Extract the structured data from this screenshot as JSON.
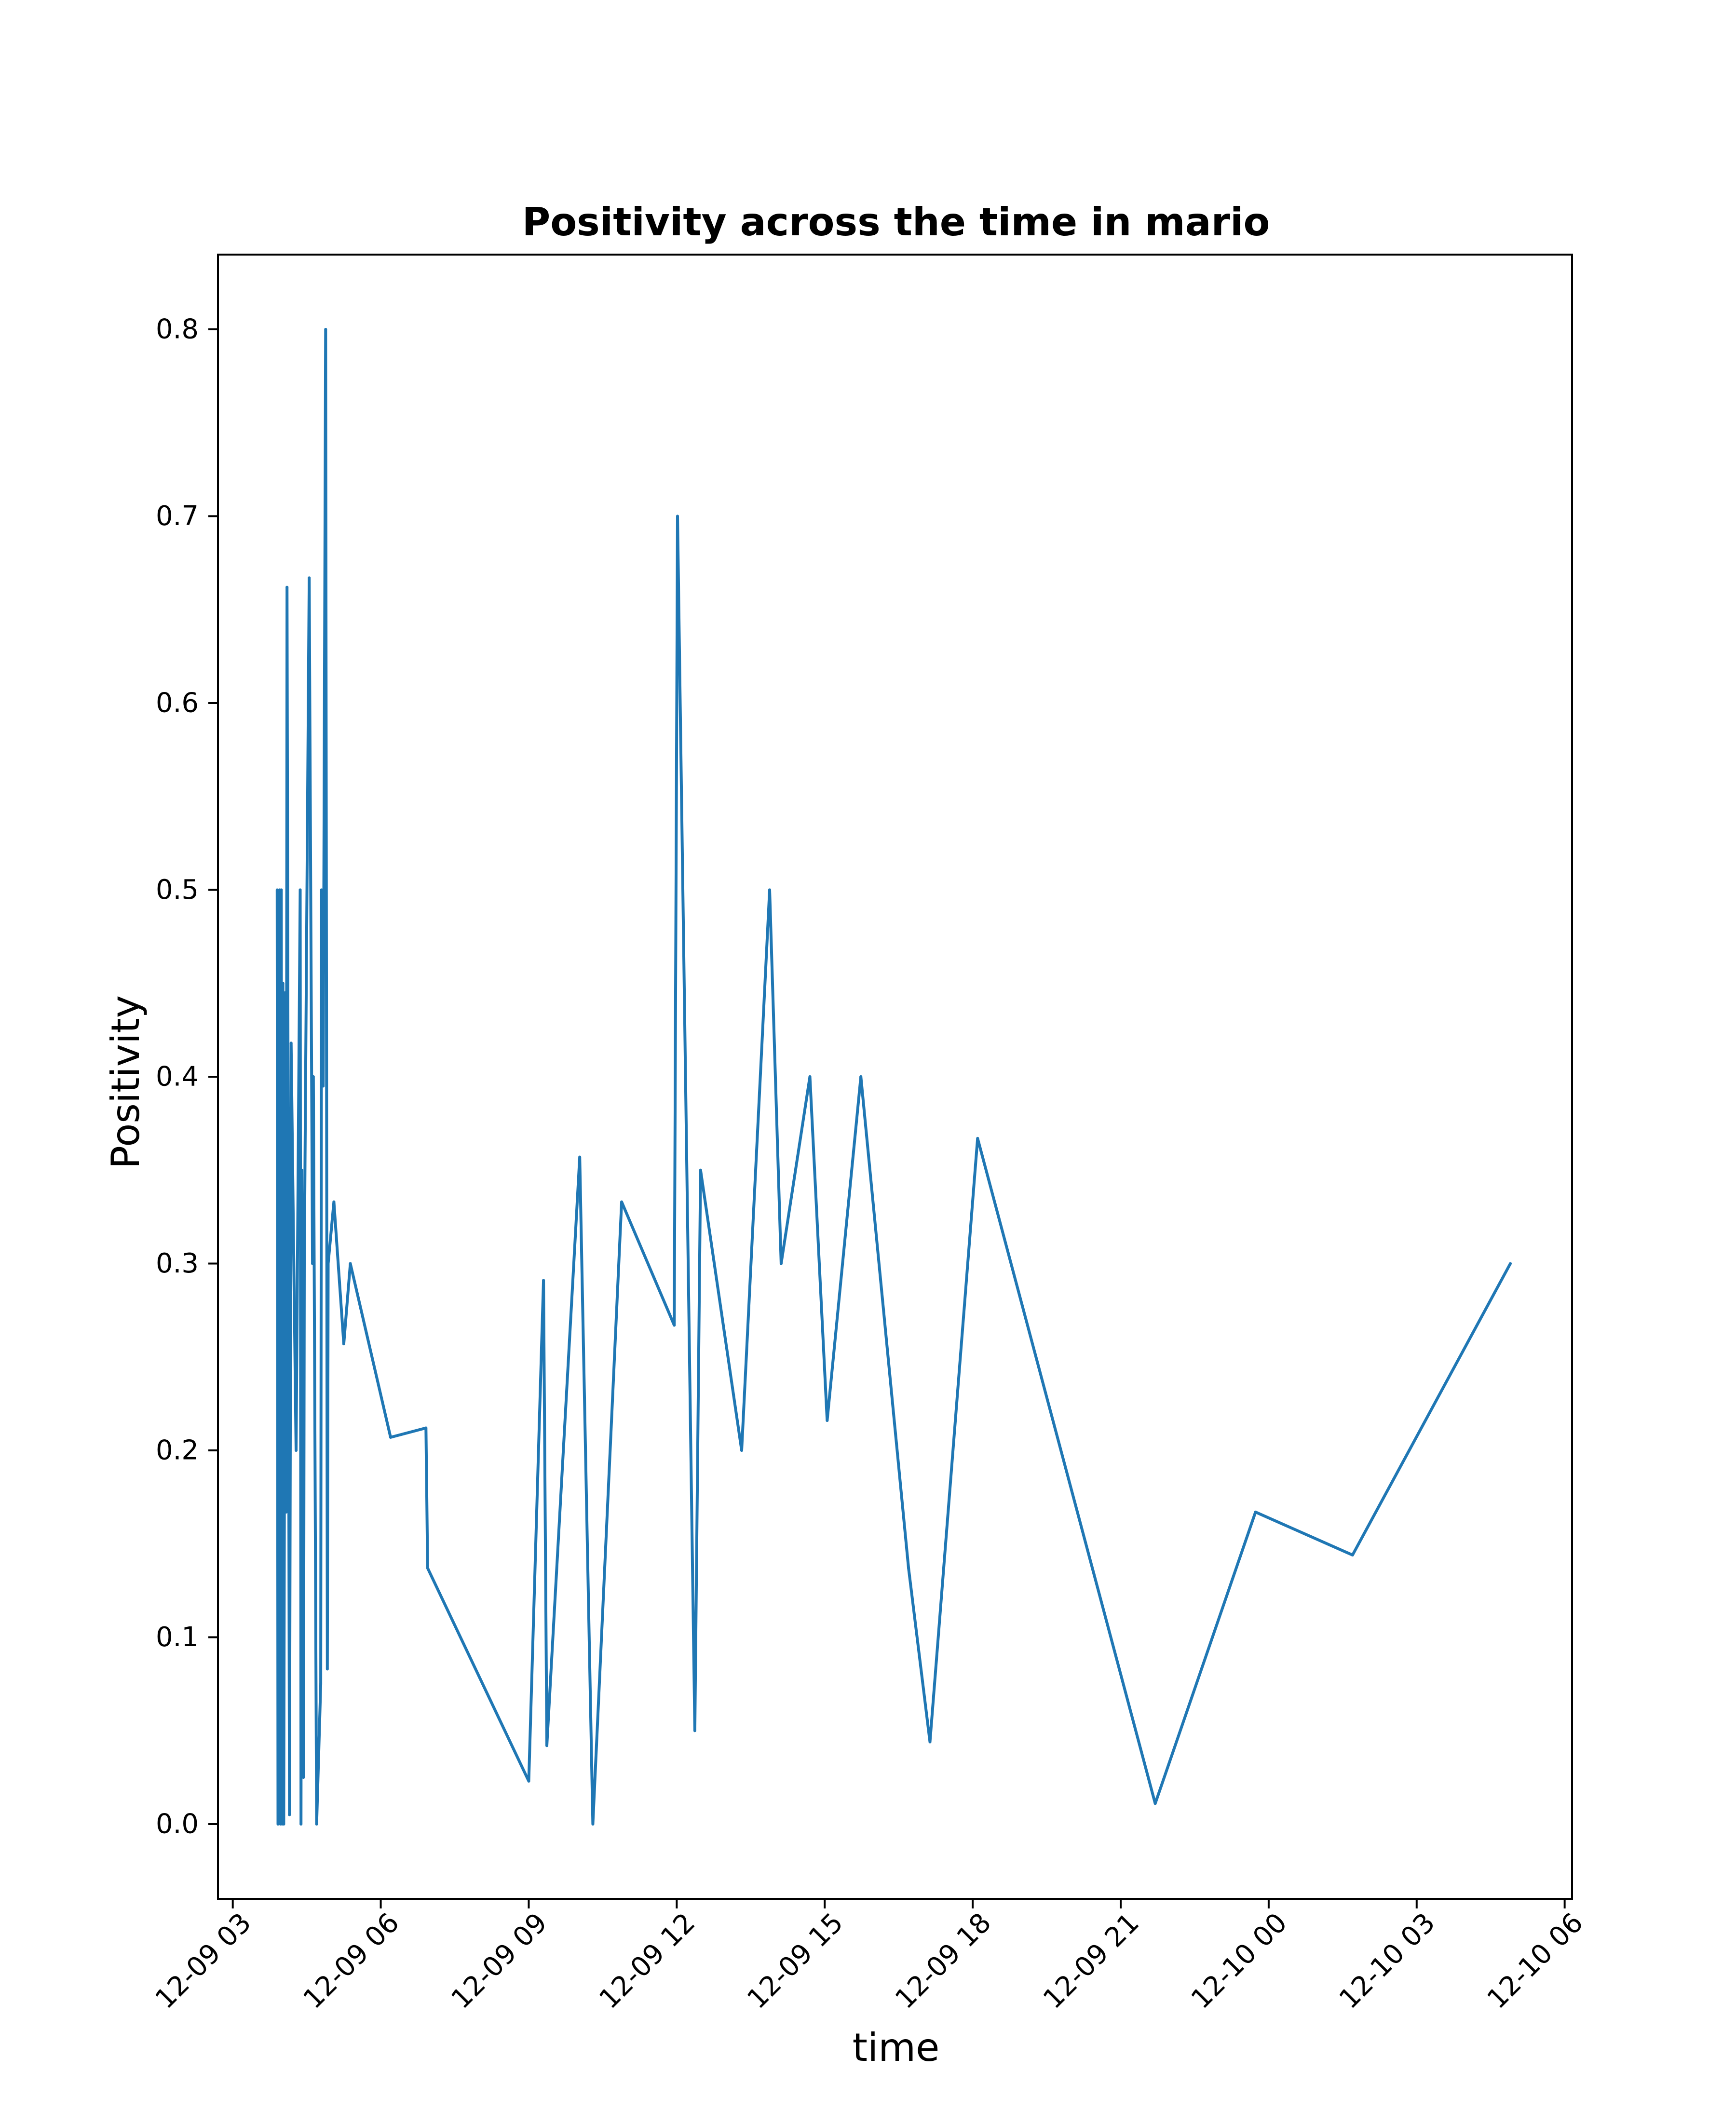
{
  "chart_data": {
    "type": "line",
    "title": "Positivity across the time in mario",
    "xlabel": "time",
    "ylabel": "Positivity",
    "x_ticks": [
      "12-09 03",
      "12-09 06",
      "12-09 09",
      "12-09 12",
      "12-09 15",
      "12-09 18",
      "12-09 21",
      "12-10 00",
      "12-10 03",
      "12-10 06"
    ],
    "y_ticks": [
      "0.0",
      "0.1",
      "0.2",
      "0.3",
      "0.4",
      "0.5",
      "0.6",
      "0.7",
      "0.8"
    ],
    "x_range": [
      "12-09 02:42",
      "12-10 06:09"
    ],
    "ylim": [
      -0.04,
      0.84
    ],
    "grid": false,
    "legend": "none",
    "line_color": "#1f77b4",
    "series": [
      {
        "points": [
          [
            "12-09 03:54",
            0.5
          ],
          [
            "12-09 03:55",
            0.0
          ],
          [
            "12-09 03:57",
            0.5
          ],
          [
            "12-09 03:58",
            0.0
          ],
          [
            "12-09 03:59",
            0.5
          ],
          [
            "12-09 04:00",
            0.0
          ],
          [
            "12-09 04:01",
            0.45
          ],
          [
            "12-09 04:02",
            0.0
          ],
          [
            "12-09 04:04",
            0.445
          ],
          [
            "12-09 04:05",
            0.167
          ],
          [
            "12-09 04:06",
            0.662
          ],
          [
            "12-09 04:07",
            0.45
          ],
          [
            "12-09 04:09",
            0.005
          ],
          [
            "12-09 04:11",
            0.418
          ],
          [
            "12-09 04:17",
            0.2
          ],
          [
            "12-09 04:22",
            0.5
          ],
          [
            "12-09 04:23",
            0.0
          ],
          [
            "12-09 04:24",
            0.35
          ],
          [
            "12-09 04:26",
            0.025
          ],
          [
            "12-09 04:27",
            0.3
          ],
          [
            "12-09 04:33",
            0.667
          ],
          [
            "12-09 04:37",
            0.3
          ],
          [
            "12-09 04:38",
            0.4
          ],
          [
            "12-09 04:42",
            0.0
          ],
          [
            "12-09 04:47",
            0.075
          ],
          [
            "12-09 04:48",
            0.5
          ],
          [
            "12-09 04:50",
            0.395
          ],
          [
            "12-09 04:53",
            0.8
          ],
          [
            "12-09 04:55",
            0.083
          ],
          [
            "12-09 04:56",
            0.3
          ],
          [
            "12-09 05:03",
            0.333
          ],
          [
            "12-09 05:15",
            0.257
          ],
          [
            "12-09 05:23",
            0.3
          ],
          [
            "12-09 06:12",
            0.207
          ],
          [
            "12-09 06:55",
            0.212
          ],
          [
            "12-09 06:57",
            0.137
          ],
          [
            "12-09 09:00",
            0.023
          ],
          [
            "12-09 09:18",
            0.291
          ],
          [
            "12-09 09:22",
            0.042
          ],
          [
            "12-09 10:02",
            0.357
          ],
          [
            "12-09 10:18",
            0.0
          ],
          [
            "12-09 10:53",
            0.333
          ],
          [
            "12-09 11:57",
            0.267
          ],
          [
            "12-09 12:01",
            0.7
          ],
          [
            "12-09 12:22",
            0.05
          ],
          [
            "12-09 12:29",
            0.35
          ],
          [
            "12-09 13:19",
            0.2
          ],
          [
            "12-09 13:53",
            0.5
          ],
          [
            "12-09 14:07",
            0.3
          ],
          [
            "12-09 14:42",
            0.4
          ],
          [
            "12-09 15:03",
            0.216
          ],
          [
            "12-09 15:44",
            0.4
          ],
          [
            "12-09 16:42",
            0.137
          ],
          [
            "12-09 17:08",
            0.044
          ],
          [
            "12-09 18:06",
            0.367
          ],
          [
            "12-09 21:42",
            0.011
          ],
          [
            "12-09 23:44",
            0.167
          ],
          [
            "12-10 01:42",
            0.144
          ],
          [
            "12-10 04:54",
            0.3
          ]
        ]
      }
    ]
  }
}
